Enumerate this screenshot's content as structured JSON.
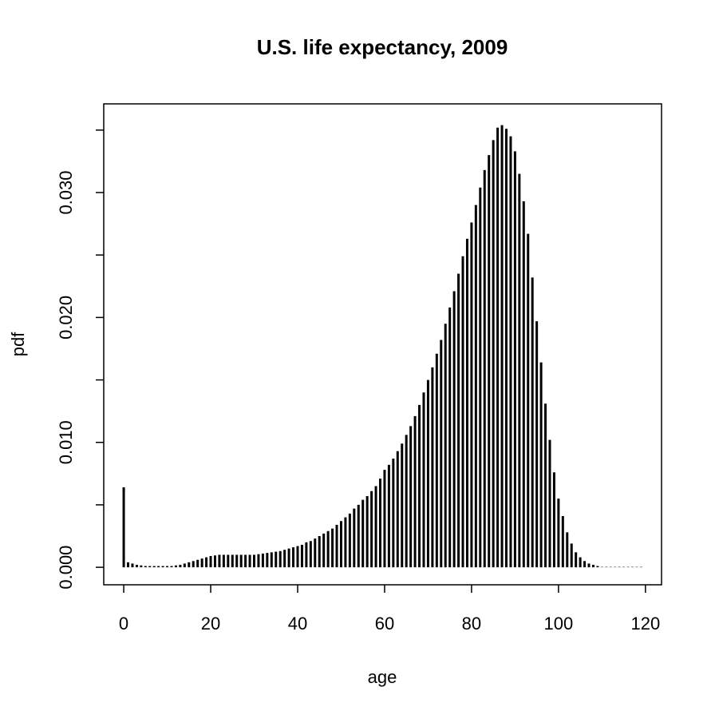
{
  "chart_data": {
    "type": "bar",
    "title": "U.S. life expectancy, 2009",
    "x_label": "age",
    "y_label": "pdf",
    "color": "#000000",
    "x": [
      0,
      1,
      2,
      3,
      4,
      5,
      6,
      7,
      8,
      9,
      10,
      11,
      12,
      13,
      14,
      15,
      16,
      17,
      18,
      19,
      20,
      21,
      22,
      23,
      24,
      25,
      26,
      27,
      28,
      29,
      30,
      31,
      32,
      33,
      34,
      35,
      36,
      37,
      38,
      39,
      40,
      41,
      42,
      43,
      44,
      45,
      46,
      47,
      48,
      49,
      50,
      51,
      52,
      53,
      54,
      55,
      56,
      57,
      58,
      59,
      60,
      61,
      62,
      63,
      64,
      65,
      66,
      67,
      68,
      69,
      70,
      71,
      72,
      73,
      74,
      75,
      76,
      77,
      78,
      79,
      80,
      81,
      82,
      83,
      84,
      85,
      86,
      87,
      88,
      89,
      90,
      91,
      92,
      93,
      94,
      95,
      96,
      97,
      98,
      99,
      100,
      101,
      102,
      103,
      104,
      105,
      106,
      107,
      108,
      109,
      110,
      111,
      112,
      113,
      114,
      115,
      116,
      117,
      118,
      119
    ],
    "values": [
      0.0064,
      0.0004,
      0.0003,
      0.0002,
      0.00015,
      0.0001,
      0.0001,
      0.0001,
      0.0001,
      0.0001,
      0.0001,
      0.0001,
      0.00015,
      0.0002,
      0.0003,
      0.0004,
      0.0005,
      0.0006,
      0.0007,
      0.0008,
      0.0009,
      0.00095,
      0.001,
      0.001,
      0.001,
      0.001,
      0.001,
      0.001,
      0.001,
      0.001,
      0.001,
      0.00105,
      0.0011,
      0.00115,
      0.0012,
      0.00125,
      0.0013,
      0.0014,
      0.0015,
      0.0016,
      0.0017,
      0.0018,
      0.002,
      0.0021,
      0.0023,
      0.0025,
      0.0027,
      0.0029,
      0.0031,
      0.0034,
      0.0037,
      0.004,
      0.0043,
      0.0047,
      0.005,
      0.0054,
      0.0057,
      0.0061,
      0.0065,
      0.0071,
      0.0078,
      0.0082,
      0.0087,
      0.0093,
      0.0099,
      0.0106,
      0.0113,
      0.0121,
      0.013,
      0.014,
      0.015,
      0.016,
      0.0171,
      0.0182,
      0.0195,
      0.0208,
      0.0221,
      0.0235,
      0.0249,
      0.0263,
      0.0276,
      0.029,
      0.0304,
      0.0318,
      0.033,
      0.0342,
      0.0352,
      0.0354,
      0.0351,
      0.0345,
      0.0333,
      0.0315,
      0.0293,
      0.0267,
      0.0232,
      0.0197,
      0.0164,
      0.0131,
      0.0102,
      0.0076,
      0.0055,
      0.0041,
      0.0028,
      0.0019,
      0.0012,
      0.0008,
      0.0005,
      0.0003,
      0.0002,
      0.0001,
      3e-05,
      3e-05,
      3e-05,
      3e-05,
      3e-05,
      3e-05,
      3e-05,
      3e-05,
      3e-05,
      3e-05
    ],
    "xlim": [
      -4.6,
      123.7
    ],
    "ylim": [
      -0.0014,
      0.0371
    ],
    "xticks": [
      0,
      20,
      40,
      60,
      80,
      100,
      120
    ],
    "yticks": [
      {
        "value": 0,
        "label": "0.000"
      },
      {
        "value": 0.005,
        "label": null
      },
      {
        "value": 0.01,
        "label": "0.010"
      },
      {
        "value": 0.015,
        "label": null
      },
      {
        "value": 0.02,
        "label": "0.020"
      },
      {
        "value": 0.025,
        "label": null
      },
      {
        "value": 0.03,
        "label": "0.030"
      },
      {
        "value": 0.035,
        "label": null
      }
    ]
  }
}
